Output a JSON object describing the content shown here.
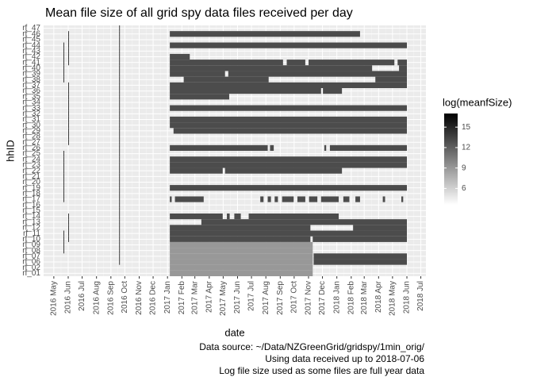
{
  "chart_data": {
    "type": "tile",
    "title": "Mean file size of all grid spy data files received per day",
    "xlabel": "date",
    "ylabel": "hhID",
    "caption": [
      "Data source: ~/Data/NZGreenGrid/gridspy/1min_orig/",
      "Using data received up to 2018-07-06",
      "Log file size used as some files are full year data"
    ],
    "xlim": [
      "2016-04-09",
      "2018-07-12"
    ],
    "xticks": [
      {
        "value": "2016-05-01",
        "label": "2016 May"
      },
      {
        "value": "2016-06-01",
        "label": "2016 Jun"
      },
      {
        "value": "2016-07-01",
        "label": "2016 Jul"
      },
      {
        "value": "2016-08-01",
        "label": "2016 Aug"
      },
      {
        "value": "2016-09-01",
        "label": "2016 Sep"
      },
      {
        "value": "2016-10-01",
        "label": "2016 Oct"
      },
      {
        "value": "2016-11-01",
        "label": "2016 Nov"
      },
      {
        "value": "2016-12-01",
        "label": "2016 Dec"
      },
      {
        "value": "2017-01-01",
        "label": "2017 Jan"
      },
      {
        "value": "2017-02-01",
        "label": "2017 Feb"
      },
      {
        "value": "2017-03-01",
        "label": "2017 Mar"
      },
      {
        "value": "2017-04-01",
        "label": "2017 Apr"
      },
      {
        "value": "2017-05-01",
        "label": "2017 May"
      },
      {
        "value": "2017-06-01",
        "label": "2017 Jun"
      },
      {
        "value": "2017-07-01",
        "label": "2017 Jul"
      },
      {
        "value": "2017-08-01",
        "label": "2017 Aug"
      },
      {
        "value": "2017-09-01",
        "label": "2017 Sep"
      },
      {
        "value": "2017-10-01",
        "label": "2017 Oct"
      },
      {
        "value": "2017-11-01",
        "label": "2017 Nov"
      },
      {
        "value": "2017-12-01",
        "label": "2017 Dec"
      },
      {
        "value": "2018-01-01",
        "label": "2018 Jan"
      },
      {
        "value": "2018-02-01",
        "label": "2018 Feb"
      },
      {
        "value": "2018-03-01",
        "label": "2018 Mar"
      },
      {
        "value": "2018-04-01",
        "label": "2018 Apr"
      },
      {
        "value": "2018-05-01",
        "label": "2018 May"
      },
      {
        "value": "2018-06-01",
        "label": "2018 Jun"
      },
      {
        "value": "2018-07-01",
        "label": "2018 Jul"
      }
    ],
    "legend_title": "log(meanfSize)",
    "fill_lim": [
      3.6,
      17
    ],
    "fill_ticks": [
      6,
      9,
      12,
      15
    ],
    "low_color": "#ffffff",
    "high_color": "#000000",
    "rows": [
      {
        "hhID": "rf_47",
        "segments": [
          [
            "2016-09-19",
            "2016-09-20",
            16
          ]
        ]
      },
      {
        "hhID": "rf_46",
        "segments": [
          [
            "2016-06-01",
            "2016-06-02",
            16
          ],
          [
            "2016-09-19",
            "2016-09-20",
            16
          ],
          [
            "2017-01-06",
            "2018-02-20",
            13
          ]
        ]
      },
      {
        "hhID": "rf_45",
        "segments": [
          [
            "2016-06-01",
            "2016-06-02",
            16
          ],
          [
            "2016-09-19",
            "2016-09-20",
            16
          ]
        ]
      },
      {
        "hhID": "rf_44",
        "segments": [
          [
            "2016-05-22",
            "2016-05-23",
            16
          ],
          [
            "2016-06-01",
            "2016-06-02",
            16
          ],
          [
            "2016-09-19",
            "2016-09-20",
            16
          ],
          [
            "2017-01-06",
            "2018-06-01",
            13
          ]
        ]
      },
      {
        "hhID": "rf_43",
        "segments": [
          [
            "2016-05-22",
            "2016-05-23",
            16
          ],
          [
            "2016-06-01",
            "2016-06-02",
            16
          ],
          [
            "2016-09-19",
            "2016-09-20",
            16
          ]
        ]
      },
      {
        "hhID": "rf_42",
        "segments": [
          [
            "2016-05-22",
            "2016-05-23",
            16
          ],
          [
            "2016-06-01",
            "2016-06-02",
            16
          ],
          [
            "2016-09-19",
            "2016-09-20",
            16
          ],
          [
            "2017-01-06",
            "2017-02-18",
            13
          ]
        ]
      },
      {
        "hhID": "rf_41",
        "segments": [
          [
            "2016-05-22",
            "2016-05-23",
            16
          ],
          [
            "2016-06-01",
            "2016-06-02",
            16
          ],
          [
            "2016-09-19",
            "2016-09-20",
            16
          ],
          [
            "2017-01-06",
            "2017-09-07",
            13
          ],
          [
            "2017-09-15",
            "2017-10-25",
            13
          ],
          [
            "2017-11-01",
            "2018-05-05",
            13
          ],
          [
            "2018-05-12",
            "2018-06-01",
            13
          ]
        ]
      },
      {
        "hhID": "rf_40",
        "segments": [
          [
            "2016-05-22",
            "2016-05-23",
            16
          ],
          [
            "2016-09-19",
            "2016-09-20",
            16
          ],
          [
            "2017-01-06",
            "2018-03-18",
            13
          ],
          [
            "2018-05-15",
            "2018-06-01",
            13
          ]
        ]
      },
      {
        "hhID": "rf_39",
        "segments": [
          [
            "2016-05-22",
            "2016-05-23",
            16
          ],
          [
            "2016-09-19",
            "2016-09-20",
            16
          ],
          [
            "2017-01-06",
            "2017-05-05",
            13
          ],
          [
            "2017-05-12",
            "2018-06-01",
            13
          ]
        ]
      },
      {
        "hhID": "rf_38",
        "segments": [
          [
            "2016-05-22",
            "2016-05-23",
            16
          ],
          [
            "2016-09-19",
            "2016-09-20",
            16
          ],
          [
            "2017-02-05",
            "2017-08-07",
            13
          ],
          [
            "2018-03-25",
            "2018-06-01",
            13
          ]
        ]
      },
      {
        "hhID": "rf_37",
        "segments": [
          [
            "2016-06-01",
            "2016-06-02",
            16
          ],
          [
            "2016-09-19",
            "2016-09-20",
            16
          ],
          [
            "2017-01-06",
            "2018-06-01",
            13
          ]
        ]
      },
      {
        "hhID": "rf_36",
        "segments": [
          [
            "2016-06-01",
            "2016-06-02",
            16
          ],
          [
            "2016-09-19",
            "2016-09-20",
            16
          ],
          [
            "2017-01-06",
            "2017-11-28",
            13
          ],
          [
            "2017-12-02",
            "2018-01-12",
            13
          ]
        ]
      },
      {
        "hhID": "rf_35",
        "segments": [
          [
            "2016-06-01",
            "2016-06-02",
            16
          ],
          [
            "2016-09-19",
            "2016-09-20",
            16
          ],
          [
            "2017-01-06",
            "2017-05-14",
            13
          ]
        ]
      },
      {
        "hhID": "rf_34",
        "segments": [
          [
            "2016-06-01",
            "2016-06-02",
            16
          ],
          [
            "2016-09-19",
            "2016-09-20",
            16
          ]
        ]
      },
      {
        "hhID": "rf_33",
        "segments": [
          [
            "2016-06-01",
            "2016-06-02",
            16
          ],
          [
            "2016-09-19",
            "2016-09-20",
            16
          ],
          [
            "2017-01-06",
            "2018-06-01",
            13
          ]
        ]
      },
      {
        "hhID": "rf_32",
        "segments": [
          [
            "2016-06-01",
            "2016-06-02",
            16
          ],
          [
            "2016-09-19",
            "2016-09-20",
            16
          ]
        ]
      },
      {
        "hhID": "rf_31",
        "segments": [
          [
            "2016-06-01",
            "2016-06-02",
            16
          ],
          [
            "2016-09-19",
            "2016-09-20",
            16
          ],
          [
            "2017-01-06",
            "2018-06-01",
            13
          ]
        ]
      },
      {
        "hhID": "rf_30",
        "segments": [
          [
            "2016-06-01",
            "2016-06-02",
            16
          ],
          [
            "2016-09-19",
            "2016-09-20",
            16
          ],
          [
            "2017-01-06",
            "2018-06-01",
            13
          ]
        ]
      },
      {
        "hhID": "rf_29",
        "segments": [
          [
            "2016-06-01",
            "2016-06-02",
            16
          ],
          [
            "2016-09-19",
            "2016-09-20",
            16
          ],
          [
            "2017-01-14",
            "2018-06-01",
            13
          ]
        ]
      },
      {
        "hhID": "rf_28",
        "segments": [
          [
            "2016-06-01",
            "2016-06-02",
            16
          ],
          [
            "2016-09-19",
            "2016-09-20",
            16
          ]
        ]
      },
      {
        "hhID": "rf_27",
        "segments": [
          [
            "2016-06-01",
            "2016-06-02",
            16
          ],
          [
            "2016-09-19",
            "2016-09-20",
            16
          ]
        ]
      },
      {
        "hhID": "rf_26",
        "segments": [
          [
            "2016-09-19",
            "2016-09-20",
            16
          ],
          [
            "2017-01-06",
            "2017-08-05",
            13
          ],
          [
            "2017-08-10",
            "2017-08-18",
            13
          ],
          [
            "2017-12-05",
            "2017-12-09",
            13
          ],
          [
            "2017-12-17",
            "2018-06-01",
            13
          ]
        ]
      },
      {
        "hhID": "rf_25",
        "segments": [
          [
            "2016-05-22",
            "2016-05-23",
            16
          ],
          [
            "2016-09-19",
            "2016-09-20",
            16
          ]
        ]
      },
      {
        "hhID": "rf_24",
        "segments": [
          [
            "2016-05-22",
            "2016-05-23",
            16
          ],
          [
            "2016-09-19",
            "2016-09-20",
            16
          ],
          [
            "2017-01-06",
            "2018-06-01",
            13
          ]
        ]
      },
      {
        "hhID": "rf_23",
        "segments": [
          [
            "2016-05-22",
            "2016-05-23",
            16
          ],
          [
            "2016-09-19",
            "2016-09-20",
            16
          ],
          [
            "2017-01-06",
            "2018-06-01",
            13
          ]
        ]
      },
      {
        "hhID": "rf_22",
        "segments": [
          [
            "2016-05-22",
            "2016-05-23",
            16
          ],
          [
            "2016-09-19",
            "2016-09-20",
            16
          ],
          [
            "2017-01-06",
            "2017-04-30",
            13
          ],
          [
            "2017-05-05",
            "2018-01-12",
            13
          ]
        ]
      },
      {
        "hhID": "rf_21",
        "segments": [
          [
            "2016-05-22",
            "2016-05-23",
            16
          ],
          [
            "2016-09-19",
            "2016-09-20",
            16
          ]
        ]
      },
      {
        "hhID": "rf_20",
        "segments": [
          [
            "2016-05-22",
            "2016-05-23",
            16
          ],
          [
            "2016-09-19",
            "2016-09-20",
            16
          ]
        ]
      },
      {
        "hhID": "rf_19",
        "segments": [
          [
            "2016-05-22",
            "2016-05-23",
            16
          ],
          [
            "2016-09-19",
            "2016-09-20",
            16
          ],
          [
            "2017-01-06",
            "2018-06-01",
            13
          ]
        ]
      },
      {
        "hhID": "rf_18",
        "segments": [
          [
            "2016-05-22",
            "2016-05-23",
            16
          ],
          [
            "2016-09-19",
            "2016-09-20",
            16
          ]
        ]
      },
      {
        "hhID": "rf_17",
        "segments": [
          [
            "2016-05-22",
            "2016-05-23",
            16
          ],
          [
            "2016-09-19",
            "2016-09-20",
            16
          ],
          [
            "2017-01-06",
            "2017-01-10",
            13
          ],
          [
            "2017-01-17",
            "2017-03-20",
            13
          ],
          [
            "2017-07-20",
            "2017-07-27",
            13
          ],
          [
            "2017-08-05",
            "2017-08-12",
            13
          ],
          [
            "2017-08-20",
            "2017-08-27",
            13
          ],
          [
            "2017-09-05",
            "2017-09-30",
            13
          ],
          [
            "2017-10-08",
            "2017-10-25",
            13
          ],
          [
            "2017-11-02",
            "2017-11-20",
            13
          ],
          [
            "2017-11-28",
            "2018-01-05",
            13
          ],
          [
            "2018-01-15",
            "2018-01-28",
            13
          ],
          [
            "2018-02-10",
            "2018-02-20",
            13
          ],
          [
            "2018-04-10",
            "2018-04-15",
            13
          ],
          [
            "2018-05-20",
            "2018-05-24",
            13
          ]
        ]
      },
      {
        "hhID": "rf_16",
        "segments": [
          [
            "2016-09-19",
            "2016-09-20",
            16
          ]
        ]
      },
      {
        "hhID": "rf_15",
        "segments": [
          [
            "2016-09-19",
            "2016-09-20",
            16
          ]
        ]
      },
      {
        "hhID": "rf_14",
        "segments": [
          [
            "2016-06-01",
            "2016-06-02",
            16
          ],
          [
            "2016-09-19",
            "2016-09-20",
            16
          ],
          [
            "2017-01-06",
            "2017-04-30",
            13
          ],
          [
            "2017-05-09",
            "2017-05-15",
            13
          ],
          [
            "2017-05-25",
            "2017-06-08",
            13
          ],
          [
            "2017-06-25",
            "2018-01-05",
            13
          ]
        ]
      },
      {
        "hhID": "rf_13",
        "segments": [
          [
            "2016-06-01",
            "2016-06-02",
            16
          ],
          [
            "2016-09-19",
            "2016-09-20",
            16
          ],
          [
            "2017-03-15",
            "2018-06-01",
            13
          ]
        ]
      },
      {
        "hhID": "rf_12",
        "segments": [
          [
            "2016-06-01",
            "2016-06-02",
            16
          ],
          [
            "2016-09-19",
            "2016-09-20",
            16
          ],
          [
            "2017-01-06",
            "2017-11-05",
            13
          ],
          [
            "2018-02-05",
            "2018-06-01",
            13
          ]
        ]
      },
      {
        "hhID": "rf_11",
        "segments": [
          [
            "2016-05-22",
            "2016-05-23",
            16
          ],
          [
            "2016-06-01",
            "2016-06-02",
            16
          ],
          [
            "2016-09-19",
            "2016-09-20",
            16
          ],
          [
            "2017-01-06",
            "2018-06-01",
            13
          ]
        ]
      },
      {
        "hhID": "rf_10",
        "segments": [
          [
            "2016-05-22",
            "2016-05-23",
            16
          ],
          [
            "2016-06-01",
            "2016-06-02",
            16
          ],
          [
            "2016-09-19",
            "2016-09-20",
            16
          ],
          [
            "2017-01-06",
            "2017-11-05",
            13
          ],
          [
            "2017-11-10",
            "2018-06-01",
            13
          ]
        ]
      },
      {
        "hhID": "rf_09",
        "segments": [
          [
            "2016-05-22",
            "2016-05-23",
            16
          ],
          [
            "2016-09-19",
            "2016-09-20",
            16
          ],
          [
            "2017-01-06",
            "2017-11-10",
            9
          ]
        ]
      },
      {
        "hhID": "rf_08",
        "segments": [
          [
            "2016-05-22",
            "2016-05-23",
            16
          ],
          [
            "2016-09-19",
            "2016-09-20",
            16
          ],
          [
            "2017-01-06",
            "2017-11-10",
            9
          ]
        ]
      },
      {
        "hhID": "rf_07",
        "segments": [
          [
            "2016-09-19",
            "2016-09-20",
            16
          ],
          [
            "2017-01-06",
            "2017-11-10",
            9
          ],
          [
            "2017-11-12",
            "2018-06-01",
            13
          ]
        ]
      },
      {
        "hhID": "rf_06",
        "segments": [
          [
            "2016-09-19",
            "2016-09-20",
            16
          ],
          [
            "2017-01-06",
            "2017-11-10",
            9
          ],
          [
            "2017-11-12",
            "2018-06-01",
            13
          ]
        ]
      },
      {
        "hhID": "rf_02",
        "segments": [
          [
            "2017-01-06",
            "2017-11-10",
            9
          ]
        ]
      },
      {
        "hhID": "rf_01",
        "segments": [
          [
            "2017-01-06",
            "2017-11-10",
            9
          ]
        ]
      }
    ]
  }
}
